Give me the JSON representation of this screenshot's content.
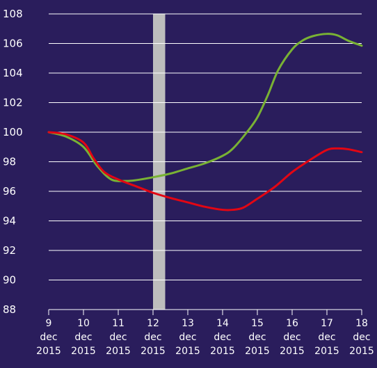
{
  "chart_data": {
    "type": "line",
    "background": "#2a1d5c",
    "grid": true,
    "ylim": [
      88,
      108
    ],
    "y_ticks": [
      "108",
      "106",
      "104",
      "102",
      "100",
      "98",
      "96",
      "94",
      "92",
      "90",
      "88"
    ],
    "x_ticks": [
      [
        "9",
        "dec",
        "2015"
      ],
      [
        "10",
        "dec",
        "2015"
      ],
      [
        "11",
        "dec",
        "2015"
      ],
      [
        "12",
        "dec",
        "2015"
      ],
      [
        "13",
        "dec",
        "2015"
      ],
      [
        "14",
        "dec",
        "2015"
      ],
      [
        "15",
        "dec",
        "2015"
      ],
      [
        "16",
        "dec",
        "2015"
      ],
      [
        "17",
        "dec",
        "2015"
      ],
      [
        "18",
        "dec",
        "2015"
      ]
    ],
    "highlight_band": {
      "from": 12,
      "to": 12.35,
      "color": "#bdbdbd"
    },
    "series": [
      {
        "color": "#79b234",
        "x": [
          9,
          9.5,
          10,
          10.4,
          10.8,
          11.2,
          11.5,
          12,
          12.5,
          13,
          13.5,
          14,
          14.3,
          14.7,
          15,
          15.3,
          15.6,
          16,
          16.3,
          16.6,
          17,
          17.3,
          17.6,
          18
        ],
        "y": [
          100,
          99.7,
          99.0,
          97.7,
          96.8,
          96.7,
          96.75,
          96.95,
          97.2,
          97.55,
          97.9,
          98.4,
          98.9,
          100,
          101.0,
          102.5,
          104.2,
          105.6,
          106.2,
          106.5,
          106.65,
          106.55,
          106.2,
          105.85
        ]
      },
      {
        "color": "#e30613",
        "x": [
          9,
          9.5,
          10,
          10.3,
          10.6,
          11,
          11.5,
          12,
          12.5,
          13,
          13.5,
          14,
          14.3,
          14.6,
          15,
          15.5,
          16,
          16.5,
          17,
          17.3,
          17.6,
          18
        ],
        "y": [
          100,
          99.85,
          99.3,
          98.2,
          97.3,
          96.8,
          96.35,
          95.9,
          95.55,
          95.25,
          94.95,
          94.75,
          94.75,
          94.9,
          95.5,
          96.3,
          97.3,
          98.1,
          98.8,
          98.9,
          98.85,
          98.65
        ]
      }
    ]
  }
}
